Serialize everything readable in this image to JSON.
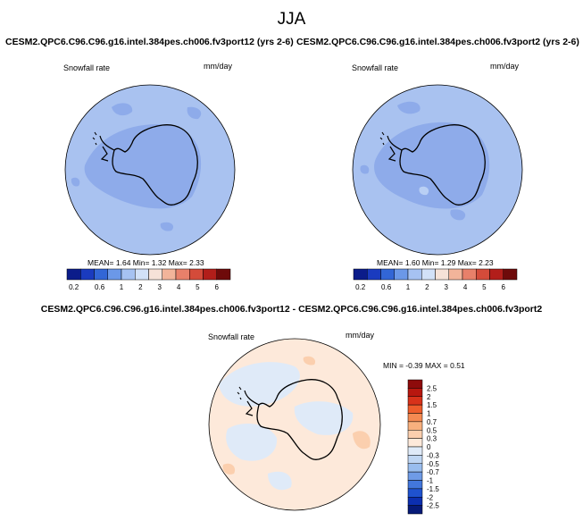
{
  "figure": {
    "season": "JJA"
  },
  "panels": [
    {
      "title": "CESM2.QPC6.C96.C96.g16.intel.384pes.ch006.fv3port12 (yrs 2-6)",
      "variable": "Snowfall rate",
      "units": "mm/day",
      "stats": "MEAN=   1.64  Min=   1.32  Max=   2.33"
    },
    {
      "title": "CESM2.QPC6.C96.C96.g16.intel.384pes.ch006.fv3port2 (yrs 2-6)",
      "variable": "Snowfall rate",
      "units": "mm/day",
      "stats": "MEAN=   1.60  Min=   1.29  Max=   2.23"
    },
    {
      "title": "CESM2.QPC6.C96.C96.g16.intel.384pes.ch006.fv3port12 - CESM2.QPC6.C96.C96.g16.intel.384pes.ch006.fv3port2",
      "variable": "Snowfall rate",
      "units": "mm/day",
      "stats": "MIN = -0.39 MAX =  0.51"
    }
  ],
  "chart_data": [
    {
      "type": "heatmap",
      "projection": "south-polar-stereographic",
      "title": "CESM2.QPC6.C96.C96.g16.intel.384pes.ch006.fv3port12 (yrs 2-6)",
      "variable": "Snowfall rate",
      "units": "mm/day",
      "mean": 1.64,
      "min": 1.32,
      "max": 2.33,
      "colorbar_levels": [
        0.2,
        0.6,
        1,
        2,
        3,
        4,
        5,
        6
      ],
      "colorbar_labels": [
        "0.2",
        "0.6",
        "1",
        "2",
        "3",
        "4",
        "5",
        "6"
      ],
      "colorbar_colors": [
        "#0b1c8a",
        "#1a3bbf",
        "#3266d6",
        "#6b98e8",
        "#a6c2f2",
        "#d2e1f8",
        "#f6e2d8",
        "#f2b49a",
        "#e8806a",
        "#d44b3a",
        "#b21e1a",
        "#6e0a0a"
      ]
    },
    {
      "type": "heatmap",
      "projection": "south-polar-stereographic",
      "title": "CESM2.QPC6.C96.C96.g16.intel.384pes.ch006.fv3port2 (yrs 2-6)",
      "variable": "Snowfall rate",
      "units": "mm/day",
      "mean": 1.6,
      "min": 1.29,
      "max": 2.23,
      "colorbar_levels": [
        0.2,
        0.6,
        1,
        2,
        3,
        4,
        5,
        6
      ],
      "colorbar_labels": [
        "0.2",
        "0.6",
        "1",
        "2",
        "3",
        "4",
        "5",
        "6"
      ],
      "colorbar_colors": [
        "#0b1c8a",
        "#1a3bbf",
        "#3266d6",
        "#6b98e8",
        "#a6c2f2",
        "#d2e1f8",
        "#f6e2d8",
        "#f2b49a",
        "#e8806a",
        "#d44b3a",
        "#b21e1a",
        "#6e0a0a"
      ]
    },
    {
      "type": "heatmap",
      "projection": "south-polar-stereographic",
      "title": "CESM2.QPC6.C96.C96.g16.intel.384pes.ch006.fv3port12 - CESM2.QPC6.C96.C96.g16.intel.384pes.ch006.fv3port2",
      "variable": "Snowfall rate",
      "units": "mm/day",
      "min": -0.39,
      "max": 0.51,
      "colorbar_levels": [
        2.5,
        2,
        1.5,
        1,
        0.7,
        0.5,
        0.3,
        0,
        -0.3,
        -0.5,
        -0.7,
        -1,
        -1.5,
        -2,
        -2.5
      ],
      "colorbar_labels": [
        "2.5",
        "2",
        "1.5",
        "1",
        "0.7",
        "0.5",
        "0.3",
        "0",
        "-0.3",
        "-0.5",
        "-0.7",
        "-1",
        "-1.5",
        "-2",
        "-2.5"
      ],
      "colorbar_colors": [
        "#8e0b0b",
        "#b8170f",
        "#d8321a",
        "#ee5d2c",
        "#f58a52",
        "#f8b07e",
        "#fbcfae",
        "#fde9da",
        "#dfeaf8",
        "#bfd6f3",
        "#99bdee",
        "#6f9be6",
        "#4377dc",
        "#1f52cf",
        "#0c2fb0",
        "#061a78"
      ]
    }
  ]
}
